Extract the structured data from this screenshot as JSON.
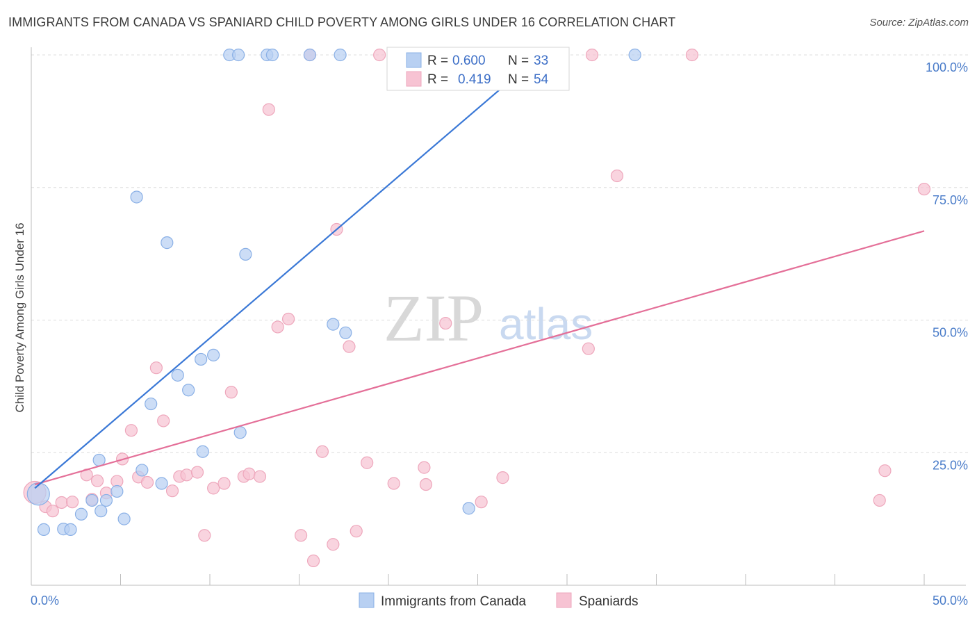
{
  "header": {
    "title": "IMMIGRANTS FROM CANADA VS SPANIARD CHILD POVERTY AMONG GIRLS UNDER 16 CORRELATION CHART",
    "source": "Source: ZipAtlas.com"
  },
  "watermark": {
    "zip": "ZIP",
    "atlas": "atlas"
  },
  "colors": {
    "blue_fill": "#b8d0f2",
    "blue_stroke": "#8ab0e6",
    "blue_line": "#3a78d6",
    "pink_fill": "#f7c3d3",
    "pink_stroke": "#eea7bc",
    "pink_line": "#e46f98",
    "grid": "#dcdcdc",
    "tick_label": "#4a7cc9"
  },
  "legend": {
    "r_label": "R =",
    "n_label": "N =",
    "rows": [
      {
        "r": "0.600",
        "n": "33"
      },
      {
        "r": "0.419",
        "n": "54"
      }
    ]
  },
  "chart_data": {
    "type": "scatter",
    "title": "IMMIGRANTS FROM CANADA VS SPANIARD CHILD POVERTY AMONG GIRLS UNDER 16 CORRELATION CHART",
    "xlabel": "",
    "ylabel": "Child Poverty Among Girls Under 16",
    "xlim": [
      0,
      50
    ],
    "ylim": [
      0,
      100
    ],
    "x_tick_labels": [
      "0.0%",
      "50.0%"
    ],
    "y_tick_labels": [
      "25.0%",
      "50.0%",
      "75.0%",
      "100.0%"
    ],
    "y_ticks": [
      25,
      50,
      75,
      100
    ],
    "grid": true,
    "legend_position": "top-center",
    "series": [
      {
        "name": "Immigrants from Canada",
        "R": 0.6,
        "N": 33,
        "trend": {
          "x": [
            0.2,
            28.5
          ],
          "y": [
            18.3,
            100
          ]
        },
        "points": [
          {
            "x": 0.4,
            "y": 17.2,
            "big": true
          },
          {
            "x": 0.7,
            "y": 10.5
          },
          {
            "x": 1.8,
            "y": 10.6
          },
          {
            "x": 2.2,
            "y": 10.5
          },
          {
            "x": 2.8,
            "y": 13.4
          },
          {
            "x": 3.4,
            "y": 16.0
          },
          {
            "x": 3.9,
            "y": 14.0
          },
          {
            "x": 3.8,
            "y": 23.6
          },
          {
            "x": 4.2,
            "y": 16.0
          },
          {
            "x": 4.8,
            "y": 17.7
          },
          {
            "x": 5.2,
            "y": 12.5
          },
          {
            "x": 5.9,
            "y": 73.2
          },
          {
            "x": 6.2,
            "y": 21.7
          },
          {
            "x": 6.7,
            "y": 34.2
          },
          {
            "x": 7.3,
            "y": 19.2
          },
          {
            "x": 7.6,
            "y": 64.6
          },
          {
            "x": 8.2,
            "y": 39.6
          },
          {
            "x": 8.8,
            "y": 36.8
          },
          {
            "x": 9.5,
            "y": 42.6
          },
          {
            "x": 9.6,
            "y": 25.2
          },
          {
            "x": 10.2,
            "y": 43.4
          },
          {
            "x": 11.7,
            "y": 28.8
          },
          {
            "x": 12.0,
            "y": 62.4
          },
          {
            "x": 11.1,
            "y": 100
          },
          {
            "x": 11.6,
            "y": 100
          },
          {
            "x": 13.2,
            "y": 100
          },
          {
            "x": 13.5,
            "y": 100
          },
          {
            "x": 15.6,
            "y": 100
          },
          {
            "x": 17.3,
            "y": 100
          },
          {
            "x": 16.9,
            "y": 49.2
          },
          {
            "x": 17.6,
            "y": 47.6
          },
          {
            "x": 24.5,
            "y": 14.5
          },
          {
            "x": 33.8,
            "y": 100
          }
        ]
      },
      {
        "name": "Spaniards",
        "R": 0.419,
        "N": 54,
        "trend": {
          "x": [
            0.2,
            50
          ],
          "y": [
            19.0,
            66.8
          ]
        },
        "points": [
          {
            "x": 0.2,
            "y": 17.5,
            "big": true
          },
          {
            "x": 0.8,
            "y": 14.8
          },
          {
            "x": 1.2,
            "y": 14.0
          },
          {
            "x": 1.7,
            "y": 15.6
          },
          {
            "x": 2.3,
            "y": 15.7
          },
          {
            "x": 3.4,
            "y": 16.2
          },
          {
            "x": 3.1,
            "y": 20.8
          },
          {
            "x": 3.7,
            "y": 19.7
          },
          {
            "x": 4.2,
            "y": 17.4
          },
          {
            "x": 4.8,
            "y": 19.6
          },
          {
            "x": 5.1,
            "y": 23.8
          },
          {
            "x": 5.6,
            "y": 29.2
          },
          {
            "x": 6.0,
            "y": 20.4
          },
          {
            "x": 6.5,
            "y": 19.4
          },
          {
            "x": 7.0,
            "y": 41.0
          },
          {
            "x": 7.4,
            "y": 31.0
          },
          {
            "x": 7.9,
            "y": 17.8
          },
          {
            "x": 8.3,
            "y": 20.5
          },
          {
            "x": 8.7,
            "y": 20.8
          },
          {
            "x": 9.3,
            "y": 21.3
          },
          {
            "x": 9.7,
            "y": 9.4
          },
          {
            "x": 10.2,
            "y": 18.3
          },
          {
            "x": 10.8,
            "y": 19.2
          },
          {
            "x": 11.2,
            "y": 36.4
          },
          {
            "x": 11.9,
            "y": 20.5
          },
          {
            "x": 12.2,
            "y": 21.0
          },
          {
            "x": 12.8,
            "y": 20.5
          },
          {
            "x": 13.3,
            "y": 89.7
          },
          {
            "x": 13.8,
            "y": 48.7
          },
          {
            "x": 14.4,
            "y": 50.2
          },
          {
            "x": 15.1,
            "y": 9.4
          },
          {
            "x": 15.8,
            "y": 4.6
          },
          {
            "x": 15.6,
            "y": 100
          },
          {
            "x": 16.3,
            "y": 25.2
          },
          {
            "x": 16.9,
            "y": 7.7
          },
          {
            "x": 17.1,
            "y": 67.1
          },
          {
            "x": 17.8,
            "y": 45.0
          },
          {
            "x": 18.2,
            "y": 10.2
          },
          {
            "x": 18.8,
            "y": 23.1
          },
          {
            "x": 19.5,
            "y": 100
          },
          {
            "x": 20.3,
            "y": 19.2
          },
          {
            "x": 22.0,
            "y": 22.2
          },
          {
            "x": 22.1,
            "y": 19.0
          },
          {
            "x": 23.2,
            "y": 49.4
          },
          {
            "x": 24.0,
            "y": 100
          },
          {
            "x": 25.2,
            "y": 15.7
          },
          {
            "x": 26.4,
            "y": 20.3
          },
          {
            "x": 31.2,
            "y": 44.6
          },
          {
            "x": 31.4,
            "y": 100
          },
          {
            "x": 32.8,
            "y": 77.2
          },
          {
            "x": 37.0,
            "y": 100
          },
          {
            "x": 47.5,
            "y": 16.0
          },
          {
            "x": 47.8,
            "y": 21.6
          },
          {
            "x": 50.0,
            "y": 74.7
          }
        ]
      }
    ]
  }
}
